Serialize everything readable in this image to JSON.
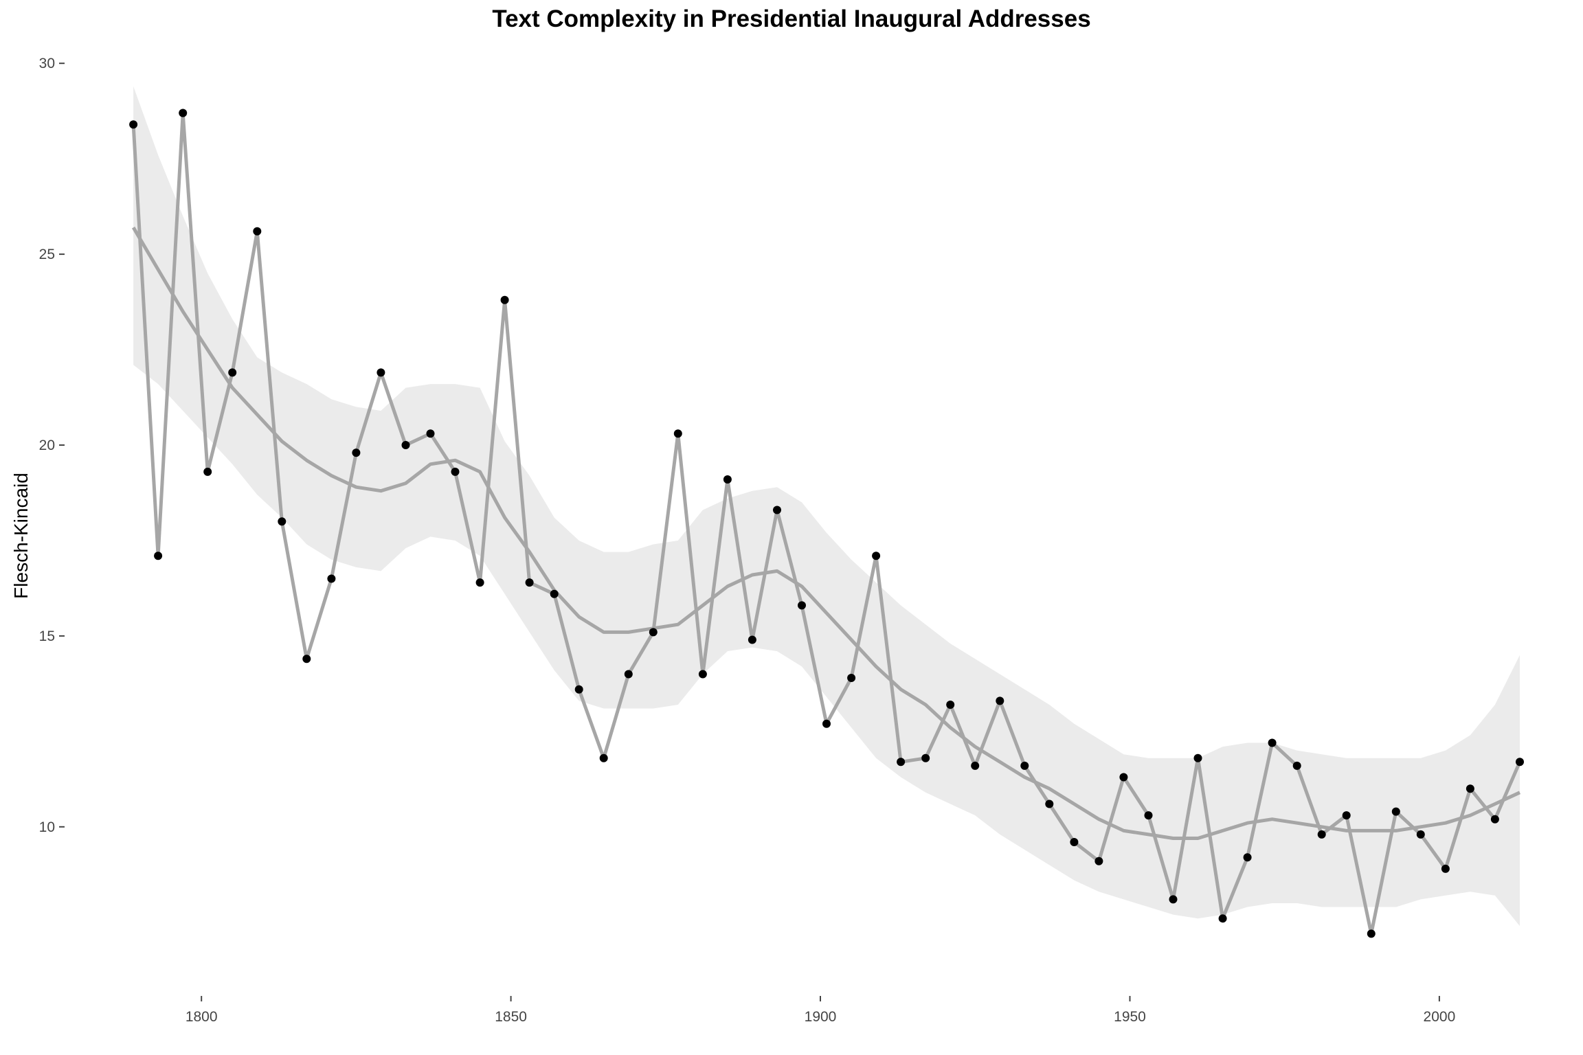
{
  "chart_data": {
    "type": "line",
    "title": "Text Complexity in Presidential Inaugural Addresses",
    "xlabel": "",
    "ylabel": "Flesch-Kincaid",
    "xlim": [
      1778,
      2015
    ],
    "ylim": [
      6.2,
      30.4
    ],
    "x_ticks": [
      1800,
      1850,
      1900,
      1950,
      2000
    ],
    "y_ticks": [
      10,
      15,
      20,
      25,
      30
    ],
    "grid": false,
    "legend": "none",
    "colors": {
      "points": "#000000",
      "line": "#a6a6a6",
      "smooth": "#a6a6a6",
      "band": "#ebebeb"
    },
    "series": [
      {
        "x": [
          1789,
          1793,
          1797,
          1801,
          1805,
          1809,
          1813,
          1817,
          1821,
          1825,
          1829,
          1833,
          1837,
          1841,
          1845,
          1849,
          1853,
          1857,
          1861,
          1865,
          1869,
          1873,
          1877,
          1881,
          1885,
          1889,
          1893,
          1897,
          1901,
          1905,
          1909,
          1913,
          1917,
          1921,
          1925,
          1929,
          1933,
          1937,
          1941,
          1945,
          1949,
          1953,
          1957,
          1961,
          1965,
          1969,
          1973,
          1977,
          1981,
          1985,
          1989,
          1993,
          1997,
          2001,
          2005,
          2009,
          2013
        ],
        "y": [
          28.4,
          17.1,
          28.7,
          19.3,
          21.9,
          25.6,
          18.0,
          14.4,
          16.5,
          19.8,
          21.9,
          20.0,
          20.3,
          19.3,
          16.4,
          23.8,
          16.4,
          16.1,
          13.6,
          11.8,
          14.0,
          15.1,
          20.3,
          14.0,
          19.1,
          14.9,
          18.3,
          15.8,
          12.7,
          13.9,
          17.1,
          11.7,
          11.8,
          13.2,
          11.6,
          13.3,
          11.6,
          10.6,
          9.6,
          9.1,
          11.3,
          10.3,
          8.1,
          11.8,
          7.6,
          9.2,
          12.2,
          11.6,
          9.8,
          10.3,
          7.2,
          10.4,
          9.8,
          8.9,
          11.0,
          10.2,
          11.7
        ]
      }
    ],
    "smooth": {
      "x": [
        1789,
        1793,
        1797,
        1801,
        1805,
        1809,
        1813,
        1817,
        1821,
        1825,
        1829,
        1833,
        1837,
        1841,
        1845,
        1849,
        1853,
        1857,
        1861,
        1865,
        1869,
        1873,
        1877,
        1881,
        1885,
        1889,
        1893,
        1897,
        1901,
        1905,
        1909,
        1913,
        1917,
        1921,
        1925,
        1929,
        1933,
        1937,
        1941,
        1945,
        1949,
        1953,
        1957,
        1961,
        1965,
        1969,
        1973,
        1977,
        1981,
        1985,
        1989,
        1993,
        1997,
        2001,
        2005,
        2009,
        2013
      ],
      "y": [
        25.7,
        24.6,
        23.5,
        22.5,
        21.5,
        20.8,
        20.1,
        19.6,
        19.2,
        18.9,
        18.8,
        19.0,
        19.5,
        19.6,
        19.3,
        18.1,
        17.2,
        16.2,
        15.5,
        15.1,
        15.1,
        15.2,
        15.3,
        15.8,
        16.3,
        16.6,
        16.7,
        16.3,
        15.6,
        14.9,
        14.2,
        13.6,
        13.2,
        12.6,
        12.1,
        11.7,
        11.3,
        11.0,
        10.6,
        10.2,
        9.9,
        9.8,
        9.7,
        9.7,
        9.9,
        10.1,
        10.2,
        10.1,
        10.0,
        9.9,
        9.9,
        9.9,
        10.0,
        10.1,
        10.3,
        10.6,
        10.9
      ],
      "lower": [
        22.1,
        21.6,
        20.9,
        20.2,
        19.5,
        18.7,
        18.1,
        17.4,
        17.0,
        16.8,
        16.7,
        17.3,
        17.6,
        17.5,
        17.1,
        16.1,
        15.1,
        14.1,
        13.3,
        13.1,
        13.1,
        13.1,
        13.2,
        14.0,
        14.6,
        14.7,
        14.6,
        14.2,
        13.4,
        12.6,
        11.8,
        11.3,
        10.9,
        10.6,
        10.3,
        9.8,
        9.4,
        9.0,
        8.6,
        8.3,
        8.1,
        7.9,
        7.7,
        7.6,
        7.7,
        7.9,
        8.0,
        8.0,
        7.9,
        7.9,
        7.9,
        7.9,
        8.1,
        8.2,
        8.3,
        8.2,
        7.4
      ],
      "upper": [
        29.4,
        27.6,
        26.0,
        24.5,
        23.3,
        22.3,
        21.9,
        21.6,
        21.2,
        21.0,
        20.9,
        21.5,
        21.6,
        21.6,
        21.5,
        20.1,
        19.2,
        18.1,
        17.5,
        17.2,
        17.2,
        17.4,
        17.5,
        18.3,
        18.6,
        18.8,
        18.9,
        18.5,
        17.7,
        17.0,
        16.4,
        15.8,
        15.3,
        14.8,
        14.4,
        14.0,
        13.6,
        13.2,
        12.7,
        12.3,
        11.9,
        11.8,
        11.8,
        11.8,
        12.1,
        12.2,
        12.2,
        12.0,
        11.9,
        11.8,
        11.8,
        11.8,
        11.8,
        12.0,
        12.4,
        13.2,
        14.5
      ]
    }
  }
}
